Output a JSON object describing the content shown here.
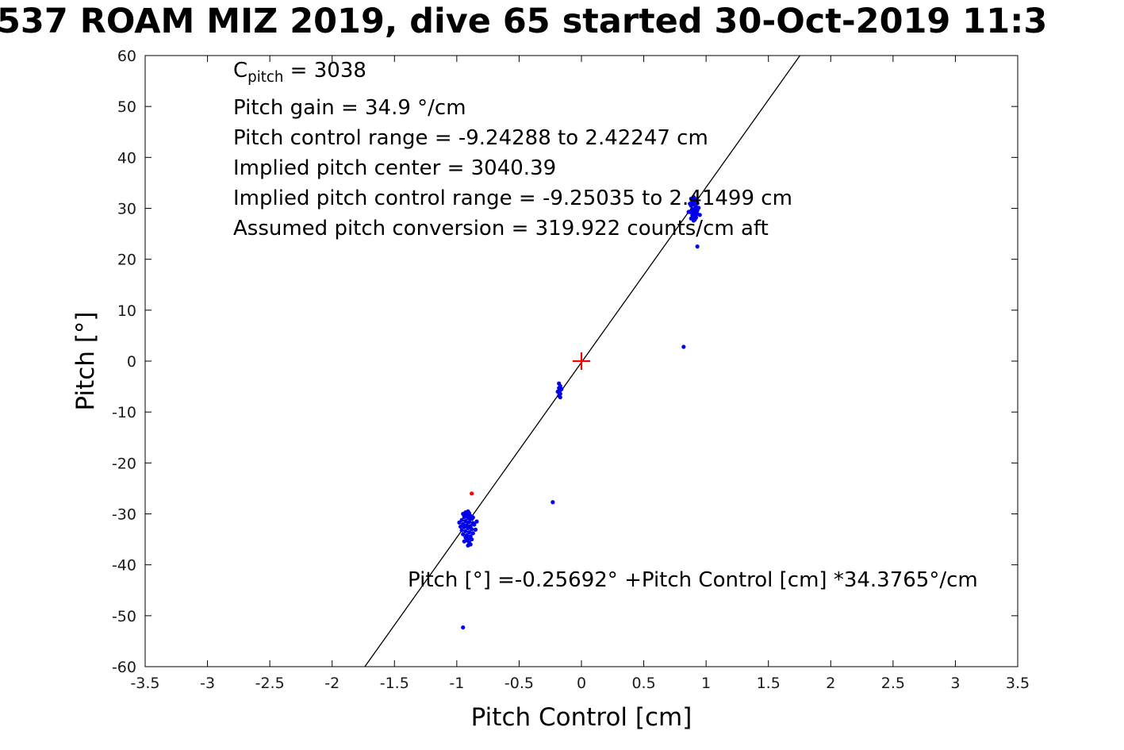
{
  "chart_data": {
    "type": "scatter",
    "title": "537 ROAM MIZ 2019, dive 65 started 30-Oct-2019 11:3",
    "xlabel": "Pitch Control [cm]",
    "ylabel": "Pitch [°]",
    "xlim": [
      -3.5,
      3.5
    ],
    "ylim": [
      -60,
      60
    ],
    "grid": false,
    "xtick_values": [
      -3.5,
      -3,
      -2.5,
      -2,
      -1.5,
      -1,
      -0.5,
      0,
      0.5,
      1,
      1.5,
      2,
      2.5,
      3,
      3.5
    ],
    "xtick_labels": [
      "-3.5",
      "-3",
      "-2.5",
      "-2",
      "-1.5",
      "-1",
      "-0.5",
      "0",
      "0.5",
      "1",
      "1.5",
      "2",
      "2.5",
      "3",
      "3.5"
    ],
    "ytick_values": [
      -60,
      -50,
      -40,
      -30,
      -20,
      -10,
      0,
      10,
      20,
      30,
      40,
      50,
      60
    ],
    "ytick_labels": [
      "-60",
      "-50",
      "-40",
      "-30",
      "-20",
      "-10",
      "0",
      "10",
      "20",
      "30",
      "40",
      "50",
      "60"
    ],
    "fit": {
      "slope": 34.3765,
      "intercept": -0.25692
    },
    "fit_label": "Pitch [°] =-0.25692° +Pitch Control [cm] *34.3765°/cm",
    "line_color": "#000000",
    "series": [
      {
        "name": "pitch-observations",
        "color": "#0000ee",
        "marker": "dot",
        "points": [
          [
            0.88,
            31.9
          ],
          [
            0.9,
            32.2
          ],
          [
            0.92,
            31.8
          ],
          [
            0.91,
            31.5
          ],
          [
            0.89,
            31.2
          ],
          [
            0.93,
            31.0
          ],
          [
            0.9,
            30.8
          ],
          [
            0.88,
            30.5
          ],
          [
            0.92,
            30.3
          ],
          [
            0.91,
            30.0
          ],
          [
            0.89,
            29.8
          ],
          [
            0.93,
            29.6
          ],
          [
            0.9,
            29.4
          ],
          [
            0.88,
            29.2
          ],
          [
            0.92,
            29.0
          ],
          [
            0.91,
            28.8
          ],
          [
            0.89,
            28.6
          ],
          [
            0.9,
            28.4
          ],
          [
            0.92,
            28.2
          ],
          [
            0.88,
            28.0
          ],
          [
            0.91,
            27.8
          ],
          [
            0.9,
            27.6
          ],
          [
            0.93,
            28.9
          ],
          [
            0.87,
            30.9
          ],
          [
            0.94,
            30.1
          ],
          [
            0.86,
            29.3
          ],
          [
            0.95,
            28.7
          ],
          [
            0.89,
            31.7
          ],
          [
            0.93,
            22.5
          ],
          [
            0.82,
            2.8
          ],
          [
            -0.18,
            -4.4
          ],
          [
            -0.17,
            -4.9
          ],
          [
            -0.18,
            -5.3
          ],
          [
            -0.17,
            -5.7
          ],
          [
            -0.18,
            -6.1
          ],
          [
            -0.17,
            -6.4
          ],
          [
            -0.18,
            -6.8
          ],
          [
            -0.17,
            -7.1
          ],
          [
            -0.16,
            -5.5
          ],
          [
            -0.19,
            -6.0
          ],
          [
            -0.23,
            -27.7
          ],
          [
            -0.95,
            -30.0
          ],
          [
            -0.92,
            -30.2
          ],
          [
            -0.89,
            -30.4
          ],
          [
            -0.94,
            -30.6
          ],
          [
            -0.91,
            -30.8
          ],
          [
            -0.88,
            -31.0
          ],
          [
            -0.96,
            -31.2
          ],
          [
            -0.93,
            -31.4
          ],
          [
            -0.9,
            -31.6
          ],
          [
            -0.87,
            -31.8
          ],
          [
            -0.95,
            -32.0
          ],
          [
            -0.92,
            -32.2
          ],
          [
            -0.89,
            -32.4
          ],
          [
            -0.94,
            -32.6
          ],
          [
            -0.91,
            -32.8
          ],
          [
            -0.88,
            -33.0
          ],
          [
            -0.96,
            -33.2
          ],
          [
            -0.93,
            -33.4
          ],
          [
            -0.9,
            -33.6
          ],
          [
            -0.87,
            -33.8
          ],
          [
            -0.95,
            -34.0
          ],
          [
            -0.92,
            -34.2
          ],
          [
            -0.89,
            -34.4
          ],
          [
            -0.93,
            -34.6
          ],
          [
            -0.9,
            -34.8
          ],
          [
            -0.92,
            -35.2
          ],
          [
            -0.9,
            -35.6
          ],
          [
            -0.91,
            -36.2
          ],
          [
            -0.86,
            -32.1
          ],
          [
            -0.97,
            -32.5
          ],
          [
            -0.85,
            -33.1
          ],
          [
            -0.98,
            -31.7
          ],
          [
            -0.84,
            -31.5
          ],
          [
            -0.93,
            -29.7
          ],
          [
            -0.9,
            -29.9
          ],
          [
            -0.88,
            -35.0
          ],
          [
            -0.94,
            -35.4
          ],
          [
            -0.89,
            -36.0
          ],
          [
            -0.91,
            -29.5
          ],
          [
            -0.87,
            -30.7
          ],
          [
            -0.95,
            -52.3
          ]
        ]
      },
      {
        "name": "flagged-observations",
        "color": "#ff0000",
        "marker": "dot",
        "points": [
          [
            -0.88,
            -26.0
          ]
        ]
      },
      {
        "name": "implied-center-marker",
        "color": "#ff0000",
        "marker": "plus",
        "points": [
          [
            0,
            0
          ]
        ]
      }
    ]
  },
  "annotation_box": {
    "cpitch": {
      "base": "C",
      "sub": "pitch",
      "rest": " = 3038"
    },
    "lines": [
      "Pitch gain = 34.9 °/cm",
      "Pitch control range = -9.24288 to 2.42247 cm",
      "Implied pitch center = 3040.39",
      "Implied pitch control range = -9.25035 to 2.41499 cm",
      "Assumed pitch conversion = 319.922 counts/cm aft"
    ]
  }
}
